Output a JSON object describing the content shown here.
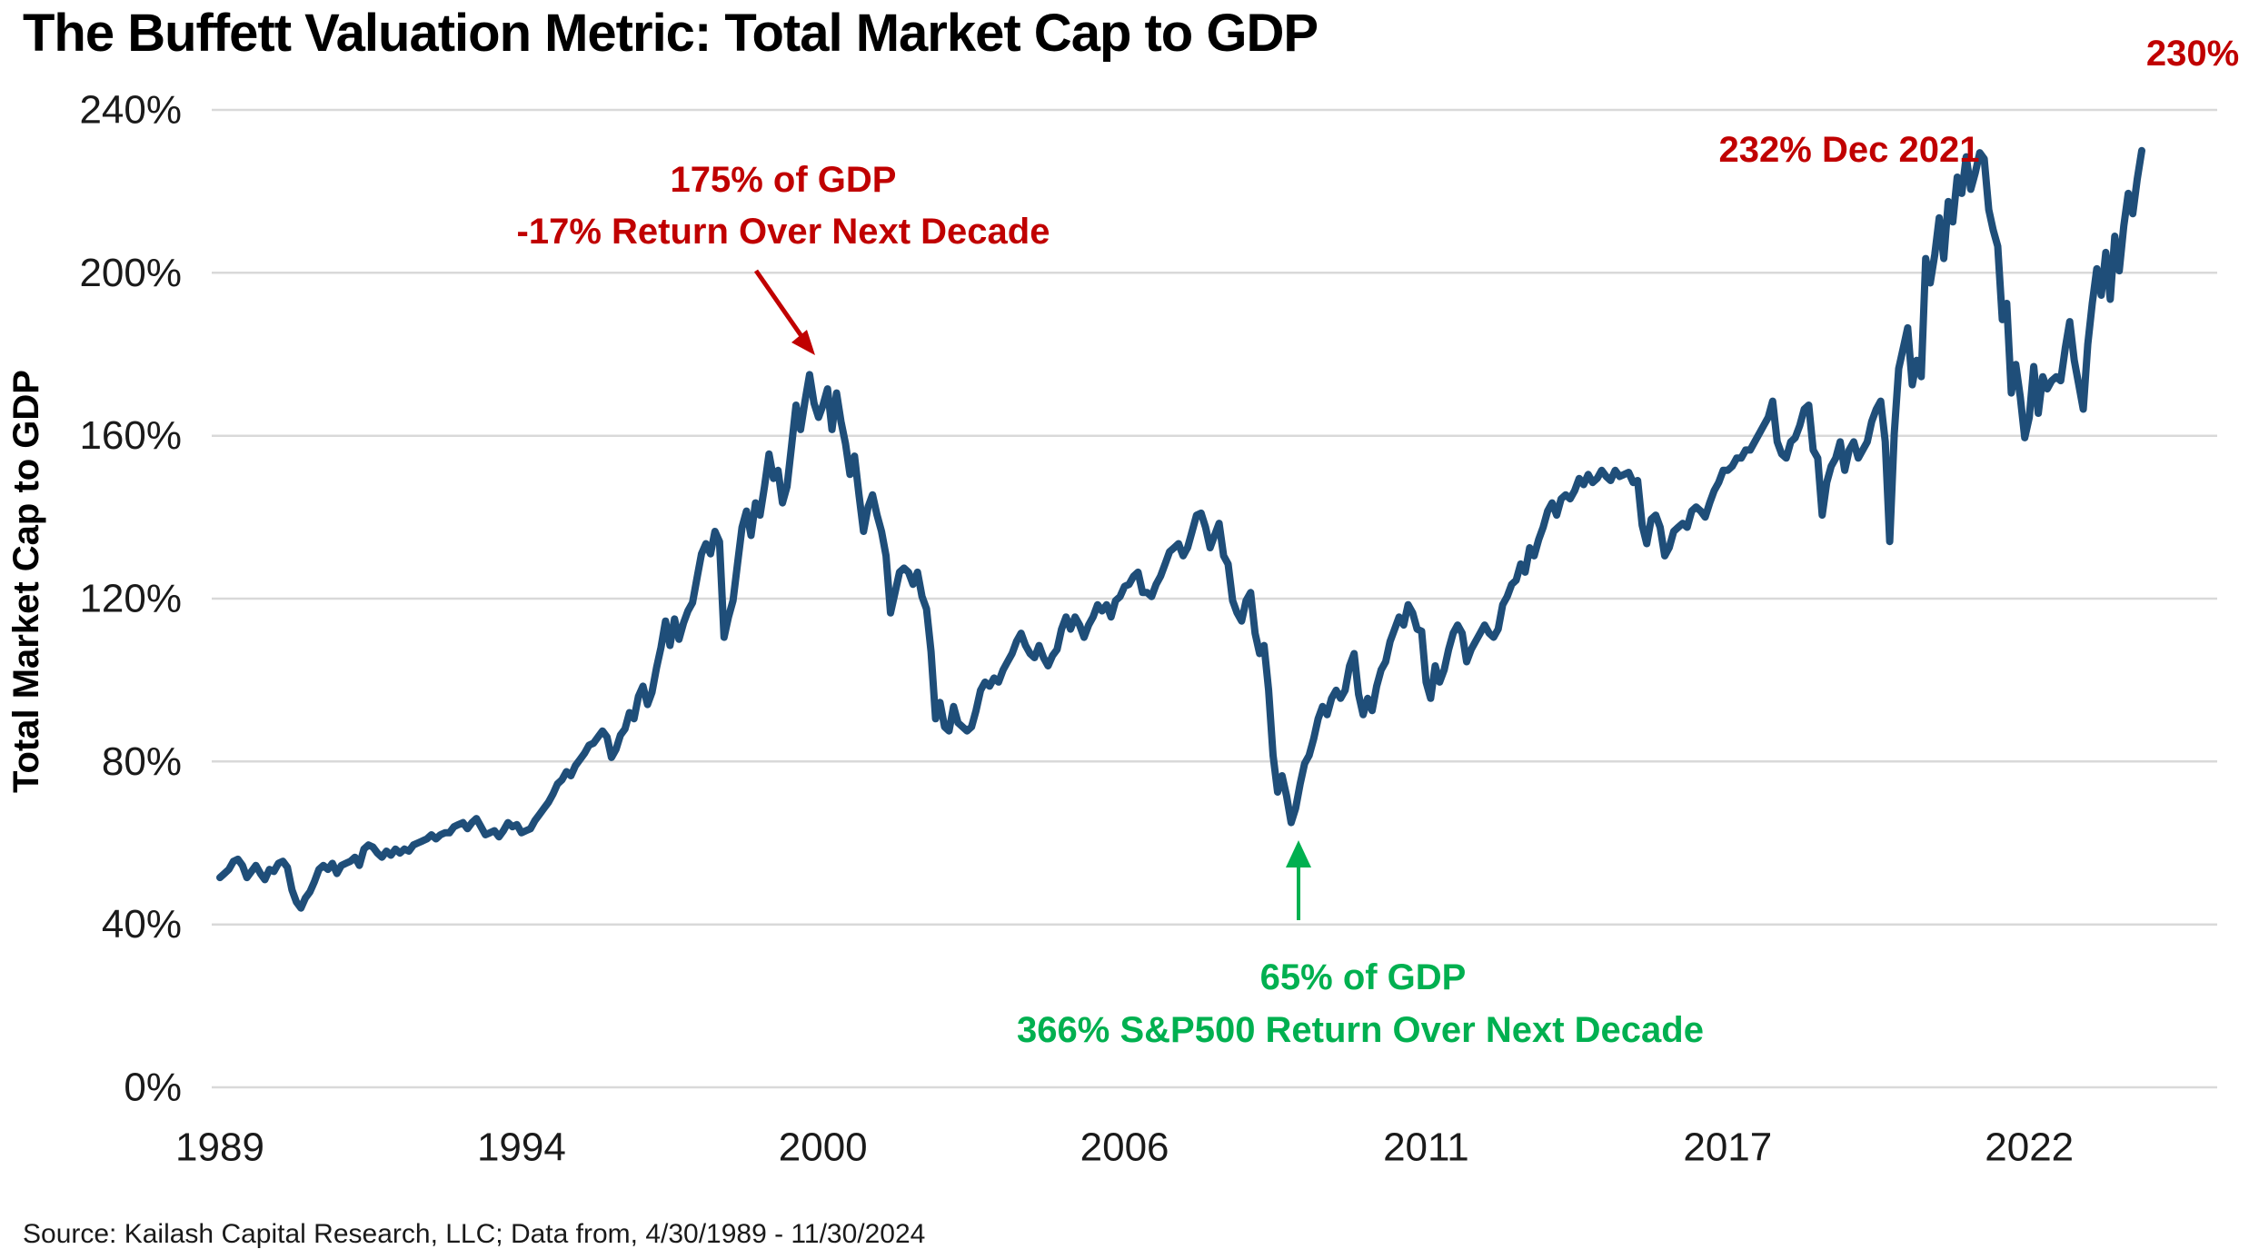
{
  "title": "The Buffett Valuation Metric: Total Market Cap to GDP",
  "source": "Source: Kailash Capital Research, LLC; Data from, 4/30/1989 - 11/30/2024",
  "y_axis": {
    "title": "Total Market Cap to GDP",
    "tick_labels": [
      "0%",
      "40%",
      "80%",
      "120%",
      "160%",
      "200%",
      "240%"
    ],
    "tick_values": [
      0,
      40,
      80,
      120,
      160,
      200,
      240
    ]
  },
  "x_axis": {
    "tick_labels": [
      "1989",
      "1994",
      "2000",
      "2006",
      "2011",
      "2017",
      "2022"
    ],
    "tick_months": [
      0,
      67,
      134,
      201,
      268,
      335,
      402
    ]
  },
  "colors": {
    "line": "#1F4E79",
    "grid": "#D9D9D9",
    "annotation_red": "#C00000",
    "annotation_green": "#00B050",
    "text": "#000000"
  },
  "annotations": {
    "peak_2000_line1": "175% of GDP",
    "peak_2000_line2": "-17% Return Over Next Decade",
    "trough_2009_line1": "65% of GDP",
    "trough_2009_line2": "366% S&P500 Return Over Next Decade",
    "dec_2021": "232% Dec 2021",
    "latest": "230%"
  },
  "chart_data": {
    "type": "line",
    "series_name": "Total Market Cap to GDP (%)",
    "frequency": "monthly",
    "start": "1989-04",
    "end": "2024-11",
    "ylim": [
      0,
      240
    ],
    "grid": "horizontal",
    "legend": "none",
    "annotated_points": [
      {
        "date": "2000-03",
        "value": 175,
        "note": "175% of GDP / -17% Return Over Next Decade"
      },
      {
        "date": "2009-02",
        "value": 65,
        "note": "65% of GDP / 366% S&P500 Return Over Next Decade"
      },
      {
        "date": "2021-12",
        "value": 232,
        "note": "232% Dec 2021"
      },
      {
        "date": "2024-11",
        "value": 230,
        "note": "230%"
      }
    ],
    "values": [
      51.5,
      52.5,
      53.5,
      55.5,
      56,
      54.5,
      51.5,
      53,
      54.5,
      52.5,
      51,
      53.5,
      53,
      55,
      55.5,
      54,
      48.5,
      45.5,
      44,
      46.5,
      48,
      50.5,
      53.5,
      54.5,
      53.5,
      55,
      52.5,
      54.5,
      55,
      55.5,
      56.5,
      54.5,
      58.5,
      59.5,
      59,
      57.5,
      56.5,
      58,
      57,
      58.5,
      57.5,
      58.5,
      58,
      59.5,
      60,
      60.5,
      61,
      62,
      61,
      62,
      62.5,
      62.5,
      64,
      64.5,
      65,
      63.5,
      65,
      66,
      64,
      62,
      62.5,
      63,
      61.5,
      63,
      65,
      64,
      64.5,
      62.5,
      63,
      63.5,
      65.5,
      67,
      68.5,
      70,
      72,
      74.5,
      75.5,
      77.5,
      76.5,
      79,
      80.5,
      82,
      84,
      84.5,
      86,
      87.5,
      86,
      81,
      83,
      86.5,
      88,
      92,
      90.5,
      96,
      98.5,
      94,
      97,
      103,
      108,
      114.5,
      108.5,
      115,
      110,
      114,
      117,
      119,
      125,
      131,
      133.5,
      131,
      136.5,
      134,
      110.5,
      115.5,
      119.5,
      128.5,
      137.5,
      141.5,
      135.5,
      143.5,
      140.5,
      147.5,
      155.5,
      149.5,
      151.5,
      143.5,
      147.5,
      157.5,
      167.5,
      161.5,
      168.5,
      175,
      168,
      164.5,
      167.5,
      171.5,
      161.5,
      170.5,
      163.5,
      158,
      150.5,
      155,
      145.5,
      136.5,
      142.5,
      145.5,
      140.5,
      136.5,
      130.5,
      116.5,
      121.5,
      126.5,
      127.5,
      126.5,
      123.5,
      126.5,
      120.5,
      117.5,
      107,
      90.5,
      94.5,
      88.5,
      87.5,
      93.5,
      89.5,
      88.5,
      87.5,
      88.5,
      92.5,
      97.5,
      99.5,
      98.5,
      100.5,
      99.5,
      102.5,
      104.5,
      106.5,
      109.5,
      111.5,
      108.5,
      106.5,
      105.5,
      108.5,
      105.5,
      103.5,
      106,
      107.5,
      112.5,
      115.5,
      112.5,
      115.5,
      113.5,
      110.5,
      113.5,
      115.5,
      118.5,
      117,
      118.5,
      115.5,
      119.5,
      120.5,
      123,
      123.5,
      125.5,
      126.5,
      121.5,
      121.5,
      120.5,
      123.5,
      125.5,
      128.5,
      131.5,
      132.5,
      133.5,
      130.5,
      132.5,
      136.5,
      140.5,
      141,
      137.5,
      132.5,
      135.5,
      138.5,
      130.5,
      128.5,
      119.5,
      116.5,
      114.5,
      119.5,
      121.5,
      111.5,
      106.5,
      108.5,
      97.5,
      81.5,
      72.5,
      76.5,
      71.5,
      65,
      68.5,
      74.5,
      79.5,
      81.5,
      85.5,
      90.5,
      93.5,
      91.5,
      95.5,
      97.5,
      95.5,
      97.5,
      103.5,
      106.5,
      96.5,
      91.5,
      95.5,
      92.5,
      98.5,
      102.5,
      104.5,
      109.5,
      112.5,
      115.5,
      113.5,
      118.5,
      116.5,
      112.5,
      112,
      99.5,
      95.5,
      103.5,
      99.5,
      102.5,
      107.5,
      111.5,
      113.5,
      111.5,
      104.5,
      107.5,
      109.5,
      111.5,
      113.5,
      111.5,
      110.5,
      112.5,
      118.5,
      120.5,
      123.5,
      124.5,
      128.5,
      126.5,
      132.5,
      130.5,
      134.5,
      137.5,
      141.5,
      143.5,
      140.5,
      144.5,
      145.5,
      144.5,
      146.5,
      149.5,
      148,
      150.5,
      148.5,
      149.5,
      151.5,
      150,
      149,
      151.5,
      150,
      150.5,
      151,
      148.5,
      149,
      138,
      133.5,
      139.5,
      140.5,
      137.5,
      130.5,
      132.5,
      136.5,
      137.5,
      138.5,
      137.5,
      141.5,
      142.5,
      141.5,
      140,
      143.5,
      146.5,
      148.5,
      151.5,
      151.5,
      152.5,
      154.5,
      154.5,
      156.5,
      156.5,
      158.5,
      160.5,
      162.5,
      164.5,
      168.5,
      158.5,
      155.5,
      154.5,
      158.5,
      159.5,
      162.5,
      166.5,
      167.5,
      156.5,
      154.5,
      140.5,
      148.5,
      152.5,
      154.5,
      158.5,
      151.5,
      156.5,
      158.5,
      154.5,
      156.5,
      158.5,
      163.5,
      166.5,
      168.5,
      158.5,
      134,
      160.5,
      176.5,
      181.5,
      186.5,
      172.5,
      178.5,
      174.5,
      203.5,
      197.5,
      204.5,
      213.5,
      203.5,
      217.5,
      212.5,
      223.5,
      219.5,
      228.5,
      220.5,
      224.5,
      229.5,
      228,
      215.5,
      210.5,
      206.5,
      188.5,
      192.5,
      170.5,
      177.5,
      169.5,
      159.5,
      164.5,
      177,
      165.5,
      174.5,
      171.5,
      173.5,
      174.5,
      173.5,
      181.5,
      188,
      178.5,
      172.5,
      166.5,
      182.5,
      192.5,
      201,
      194.5,
      205,
      193.5,
      209,
      200.5,
      211.5,
      219.5,
      214.5,
      223,
      230
    ]
  }
}
